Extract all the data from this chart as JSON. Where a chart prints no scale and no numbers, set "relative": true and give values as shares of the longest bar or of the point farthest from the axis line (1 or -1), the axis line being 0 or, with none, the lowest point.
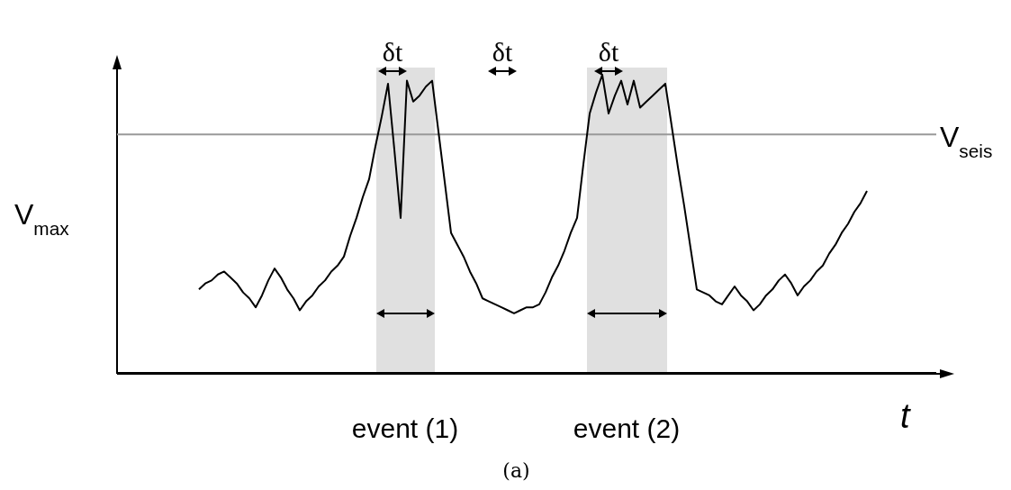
{
  "chart_data": {
    "type": "line",
    "relative": true,
    "xlabel": "t",
    "ylabel": "V$_{max}$",
    "marker": "none",
    "line_style": "solid",
    "categories": [
      null,
      null,
      null,
      null,
      null,
      null,
      null,
      null,
      null,
      null,
      null,
      null,
      null,
      null,
      null,
      null,
      null,
      null,
      null,
      null,
      null,
      null,
      null,
      null,
      null,
      null,
      null,
      null,
      null,
      null,
      null,
      null,
      null,
      null,
      null,
      null,
      null,
      null,
      null,
      null,
      null,
      null,
      null,
      null,
      null,
      null,
      null,
      null,
      null,
      null,
      null,
      null,
      null,
      null,
      null,
      null,
      null,
      null,
      null,
      null,
      null,
      null,
      null,
      null,
      null,
      null,
      null,
      null,
      null,
      null,
      null,
      null,
      null,
      null,
      null,
      null,
      null,
      null,
      null,
      null,
      null,
      null,
      null,
      null,
      null,
      null,
      null,
      null,
      null,
      null,
      null,
      null,
      null,
      null,
      null,
      null,
      null,
      null,
      null,
      null,
      null,
      null,
      null,
      null,
      null,
      null,
      null,
      null,
      null,
      null,
      null,
      null,
      null,
      null,
      null,
      null,
      null,
      null,
      null,
      null,
      null,
      null,
      null,
      null,
      null,
      null,
      null,
      null,
      null,
      null,
      null
    ],
    "series": [
      {
        "color": "#000000",
        "values": [
          null,
          null,
          null,
          null,
          null,
          null,
          null,
          null,
          null,
          null,
          null,
          null,
          null,
          0.28,
          0.3,
          0.31,
          0.33,
          0.34,
          0.32,
          0.3,
          0.27,
          0.25,
          0.22,
          0.26,
          0.31,
          0.35,
          0.32,
          0.28,
          0.25,
          0.21,
          0.24,
          0.26,
          0.29,
          0.31,
          0.34,
          0.36,
          0.39,
          0.46,
          0.52,
          0.59,
          0.65,
          0.76,
          0.86,
          0.97,
          0.75,
          0.52,
          0.98,
          0.91,
          0.93,
          0.96,
          0.98,
          0.81,
          0.64,
          0.47,
          0.43,
          0.39,
          0.34,
          0.3,
          0.25,
          0.24,
          0.23,
          0.22,
          0.21,
          0.2,
          0.21,
          0.22,
          0.22,
          0.23,
          0.27,
          0.32,
          0.36,
          0.41,
          0.47,
          0.52,
          0.7,
          0.87,
          0.94,
          1,
          0.87,
          0.93,
          0.98,
          0.9,
          0.98,
          0.89,
          0.91,
          0.93,
          0.95,
          0.97,
          0.83,
          0.69,
          0.56,
          0.42,
          0.28,
          0.27,
          0.26,
          0.24,
          0.23,
          0.26,
          0.29,
          0.26,
          0.24,
          0.21,
          0.23,
          0.26,
          0.28,
          0.31,
          0.33,
          0.3,
          0.26,
          0.29,
          0.31,
          0.34,
          0.36,
          0.4,
          0.43,
          0.47,
          0.5,
          0.54,
          0.57,
          0.61,
          null,
          null,
          null,
          null,
          null,
          null,
          null,
          null,
          null,
          null,
          null
        ]
      }
    ],
    "ref_lines": [
      {
        "axis": "y",
        "value": 0.8,
        "label": "V$_{seis}$",
        "color": "#999999"
      }
    ],
    "annotations": [
      "δt",
      "δt",
      "δt",
      "event (1)",
      "event (2)",
      "(a)"
    ]
  }
}
